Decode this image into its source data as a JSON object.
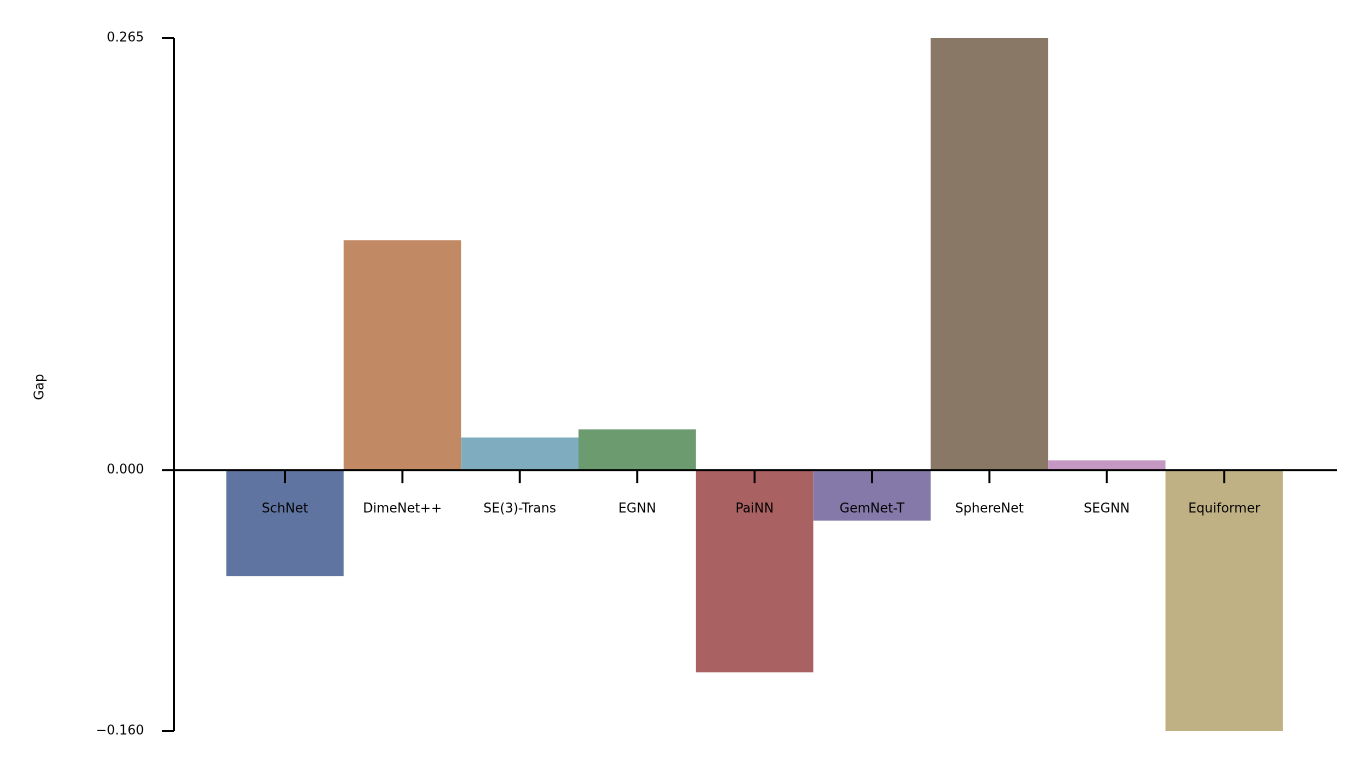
{
  "chart_data": {
    "type": "bar",
    "ylabel": "Gap",
    "categories": [
      "SchNet",
      "DimeNet++",
      "SE(3)-Trans",
      "EGNN",
      "PaiNN",
      "GemNet-T",
      "SphereNet",
      "SEGNN",
      "Equiformer"
    ],
    "values": [
      -0.065,
      0.141,
      0.02,
      0.025,
      -0.124,
      -0.031,
      0.265,
      0.006,
      -0.16
    ],
    "colors": [
      "#6074a1",
      "#c18a65",
      "#7fadbf",
      "#6c9b70",
      "#aa6161",
      "#8479a8",
      "#8a7867",
      "#c598c4",
      "#bfb183"
    ],
    "ylim": [
      -0.16,
      0.265
    ],
    "yticks": [
      {
        "value": -0.16,
        "label": "−0.160"
      },
      {
        "value": 0,
        "label": "0.000"
      },
      {
        "value": 0.265,
        "label": "0.265"
      }
    ],
    "grid": false
  }
}
